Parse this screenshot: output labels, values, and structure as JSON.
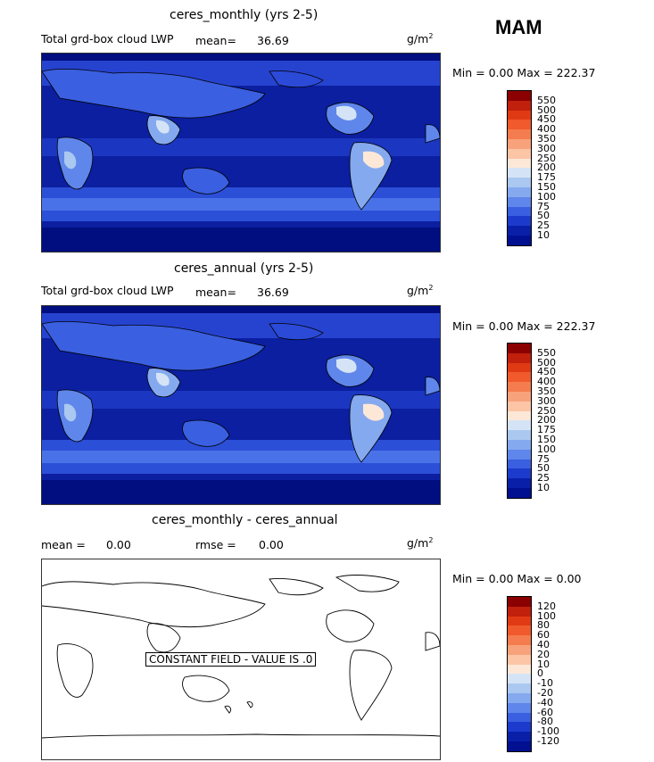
{
  "season": "MAM",
  "unit_base": "g/m",
  "unit_exp": "2",
  "panels": [
    {
      "title": "ceres_monthly (yrs 2-5)",
      "field": "Total grd-box cloud LWP",
      "mean_label": "mean=",
      "mean_value": "36.69",
      "range_text": "Min =    0.00 Max = 222.37"
    },
    {
      "title": "ceres_annual (yrs 2-5)",
      "field": "Total grd-box cloud LWP",
      "mean_label": "mean=",
      "mean_value": "36.69",
      "range_text": "Min =    0.00 Max = 222.37"
    },
    {
      "title": "ceres_monthly - ceres_annual",
      "mean_label": "mean =",
      "mean_value": "0.00",
      "rmse_label": "rmse =",
      "rmse_value": "0.00",
      "range_text": "Min =    0.00 Max =    0.00",
      "constant_field": "CONSTANT FIELD - VALUE IS .0"
    }
  ],
  "colorbar_lwp": {
    "levels": [
      "550",
      "500",
      "450",
      "400",
      "350",
      "300",
      "250",
      "200",
      "175",
      "150",
      "100",
      "75",
      "50",
      "25",
      "10"
    ],
    "colors": [
      "#8b0000",
      "#c0200c",
      "#e03a14",
      "#f05a2c",
      "#f57c4e",
      "#f8a27c",
      "#fcc5a6",
      "#fde8d8",
      "#d4e4f6",
      "#aac8f0",
      "#85a9ee",
      "#5f86ea",
      "#3a5fe0",
      "#1c3bcc",
      "#0a1fa8",
      "#001090"
    ]
  },
  "colorbar_diff": {
    "levels": [
      "120",
      "100",
      "80",
      "60",
      "40",
      "20",
      "10",
      "0",
      "-10",
      "-20",
      "-40",
      "-60",
      "-80",
      "-100",
      "-120"
    ],
    "colors": [
      "#8b0000",
      "#c0200c",
      "#e03a14",
      "#f05a2c",
      "#f57c4e",
      "#f8a27c",
      "#fcc5a6",
      "#fde8d8",
      "#d4e4f6",
      "#aac8f0",
      "#85a9ee",
      "#5f86ea",
      "#3a5fe0",
      "#1c3bcc",
      "#0a1fa8",
      "#001090"
    ]
  }
}
